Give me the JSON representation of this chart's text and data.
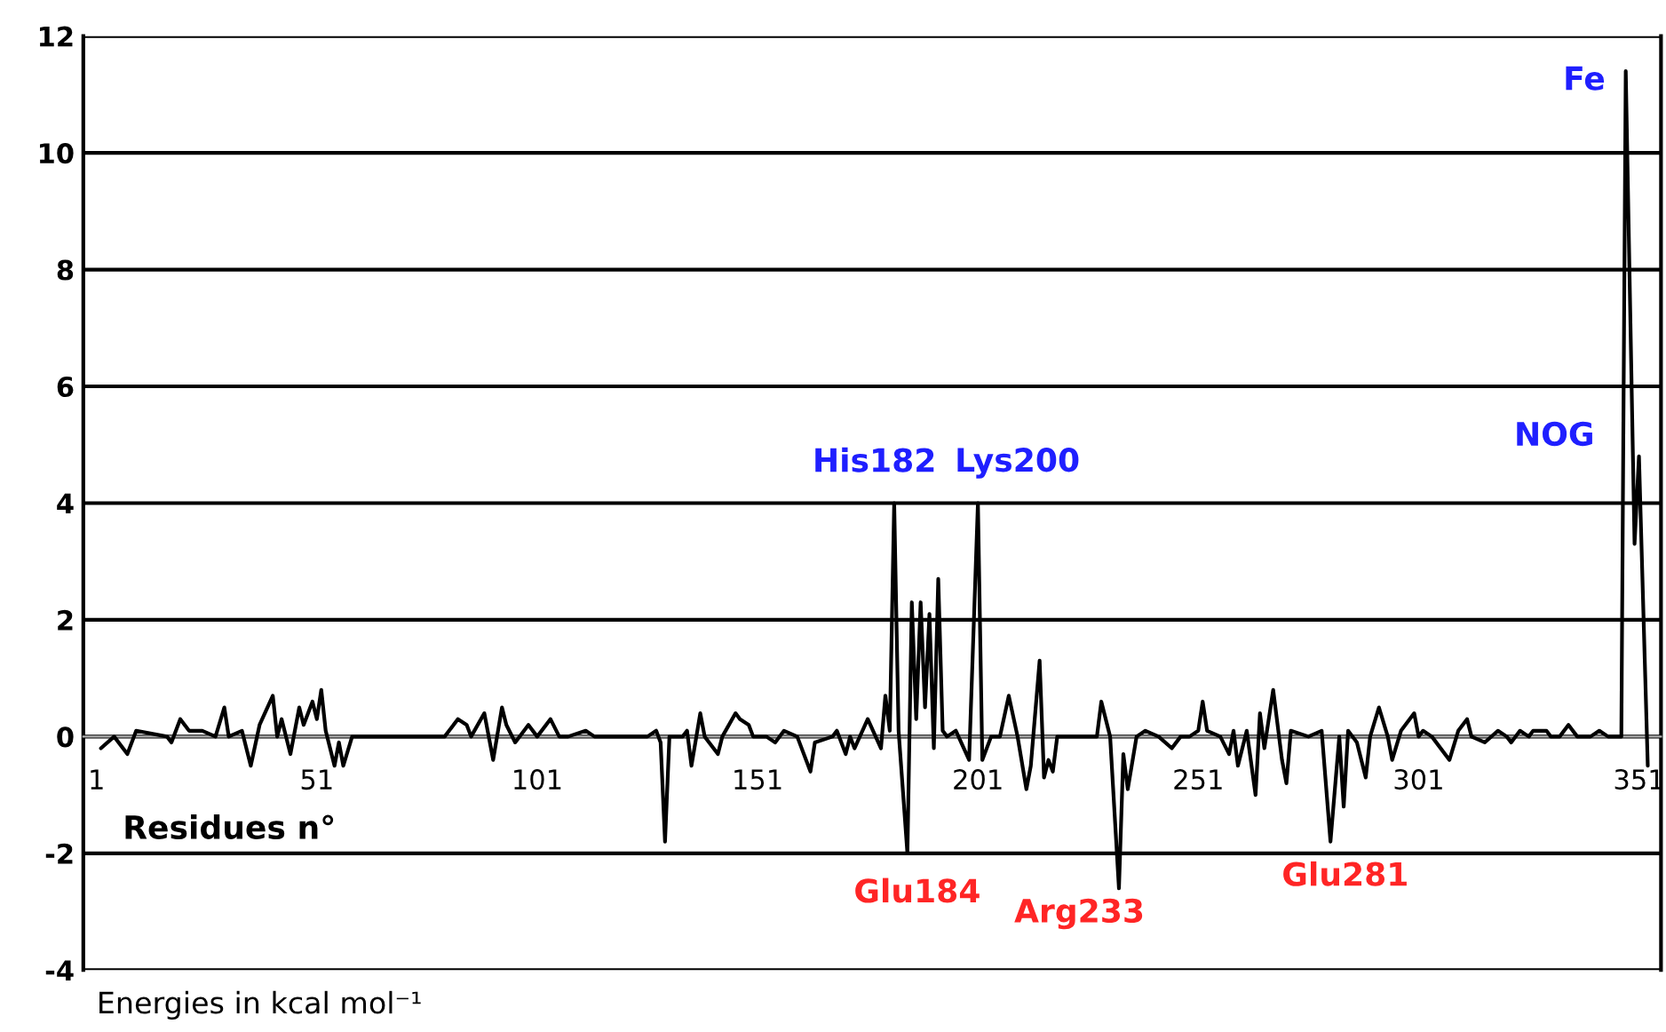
{
  "chart_data": {
    "type": "line",
    "xlabel": "Residues n°",
    "xlim": [
      -2,
      356
    ],
    "xticks": [
      1,
      51,
      101,
      151,
      201,
      251,
      301,
      351
    ],
    "ylim": [
      -4,
      12
    ],
    "yticks": [
      -4,
      -2,
      0,
      2,
      4,
      6,
      8,
      10,
      12
    ],
    "grid": "y",
    "marker": "none",
    "line_style": "solid",
    "annotations": [
      {
        "text": "His182",
        "x": 182,
        "y": 4
      },
      {
        "text": "Lys200",
        "x": 201,
        "y": 4
      },
      {
        "text": "Glu184",
        "x": 185,
        "y": -2
      },
      {
        "text": "Arg233",
        "x": 233,
        "y": -2.6
      },
      {
        "text": "Glu281",
        "x": 281,
        "y": -1.8
      },
      {
        "text": "Fe",
        "x": 349,
        "y": 11.4
      },
      {
        "text": "NOG",
        "x": 351,
        "y": 4.8
      },
      "Energies in kcal mol⁻¹"
    ],
    "series": [
      {
        "color": "#000000",
        "x": [
          2,
          5,
          8,
          10,
          17,
          18,
          20,
          22,
          25,
          28,
          30,
          31,
          34,
          36,
          38,
          41,
          42,
          43,
          45,
          47,
          48,
          50,
          51,
          52,
          53,
          55,
          56,
          57,
          59,
          80,
          83,
          85,
          86,
          89,
          91,
          93,
          94,
          96,
          99,
          101,
          104,
          106,
          108,
          112,
          114,
          126,
          128,
          129,
          130,
          131,
          134,
          135,
          136,
          138,
          139,
          140,
          142,
          143,
          146,
          147,
          149,
          150,
          153,
          155,
          157,
          160,
          163,
          164,
          168,
          169,
          171,
          172,
          173,
          176,
          179,
          180,
          181,
          182,
          183,
          185,
          186,
          187,
          188,
          189,
          190,
          191,
          192,
          193,
          194,
          196,
          199,
          201,
          202,
          204,
          206,
          208,
          210,
          212,
          213,
          215,
          216,
          217,
          218,
          219,
          228,
          229,
          231,
          233,
          234,
          235,
          237,
          239,
          242,
          245,
          247,
          249,
          251,
          252,
          253,
          256,
          258,
          259,
          260,
          262,
          264,
          265,
          266,
          268,
          270,
          271,
          272,
          276,
          279,
          281,
          283,
          284,
          285,
          287,
          289,
          290,
          292,
          294,
          295,
          297,
          300,
          301,
          302,
          304,
          308,
          310,
          312,
          313,
          316,
          319,
          321,
          322,
          324,
          326,
          327,
          329,
          330,
          331,
          333,
          335,
          337,
          340,
          342,
          344,
          347,
          348,
          350,
          351,
          353
        ],
        "values": [
          -0.2,
          0.0,
          -0.3,
          0.1,
          0.0,
          -0.1,
          0.3,
          0.1,
          0.1,
          0.0,
          0.5,
          0.0,
          0.1,
          -0.5,
          0.2,
          0.7,
          0.0,
          0.3,
          -0.3,
          0.5,
          0.2,
          0.6,
          0.3,
          0.8,
          0.1,
          -0.5,
          -0.1,
          -0.5,
          0.0,
          0.0,
          0.3,
          0.2,
          0.0,
          0.4,
          -0.4,
          0.5,
          0.2,
          -0.1,
          0.2,
          0.0,
          0.3,
          0.0,
          0.0,
          0.1,
          0.0,
          0.0,
          0.1,
          -0.1,
          -1.8,
          0.0,
          0.0,
          0.1,
          -0.5,
          0.4,
          0.0,
          -0.1,
          -0.3,
          0.0,
          0.4,
          0.3,
          0.2,
          0.0,
          0.0,
          -0.1,
          0.1,
          0.0,
          -0.6,
          -0.1,
          0.0,
          0.1,
          -0.3,
          0.0,
          -0.2,
          0.3,
          -0.2,
          0.7,
          0.1,
          4.0,
          0.1,
          -2.0,
          2.3,
          0.3,
          2.3,
          0.5,
          2.1,
          -0.2,
          2.7,
          0.1,
          0.0,
          0.1,
          -0.4,
          4.0,
          -0.4,
          0.0,
          0.0,
          0.7,
          0.0,
          -0.9,
          -0.5,
          1.3,
          -0.7,
          -0.4,
          -0.6,
          0.0,
          0.0,
          0.6,
          0.0,
          -2.6,
          -0.3,
          -0.9,
          0.0,
          0.1,
          0.0,
          -0.2,
          0.0,
          0.0,
          0.1,
          0.6,
          0.1,
          0.0,
          -0.3,
          0.1,
          -0.5,
          0.1,
          -1.0,
          0.4,
          -0.2,
          0.8,
          -0.4,
          -0.8,
          0.1,
          0.0,
          0.1,
          -1.8,
          0.0,
          -1.2,
          0.1,
          -0.1,
          -0.7,
          0.0,
          0.5,
          0.0,
          -0.4,
          0.1,
          0.4,
          0.0,
          0.1,
          0.0,
          -0.4,
          0.1,
          0.3,
          0.0,
          -0.1,
          0.1,
          0.0,
          -0.1,
          0.1,
          0.0,
          0.1,
          0.1,
          0.1,
          0.0,
          0.0,
          0.2,
          0.0,
          0.0,
          0.1,
          0.0,
          0.0,
          11.4,
          3.3,
          4.8,
          -0.5
        ]
      }
    ]
  }
}
